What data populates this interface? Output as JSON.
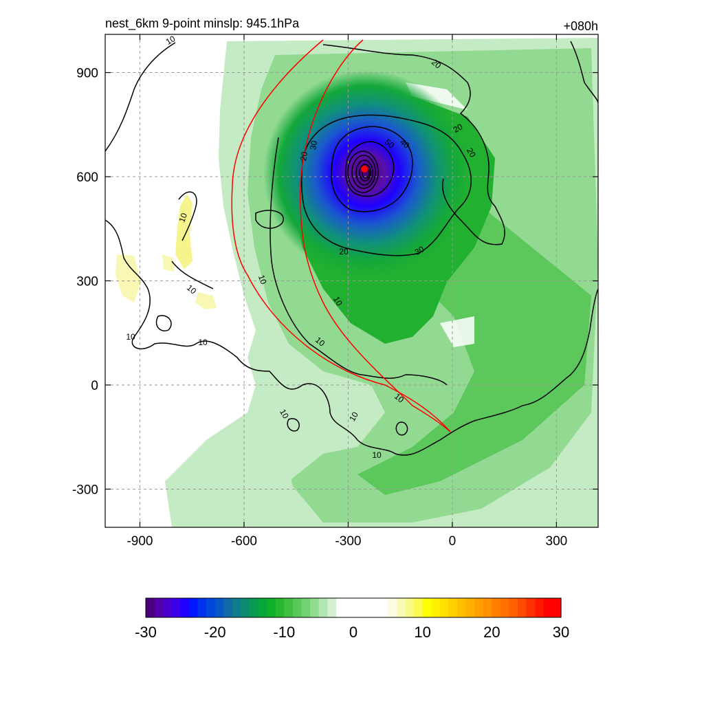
{
  "title": "nest_6km  9-point minslp: 945.1hPa",
  "forecast_hour": "+080h",
  "x_ticks": [
    "-900",
    "-600",
    "-300",
    "0",
    "300"
  ],
  "y_ticks": [
    "900",
    "600",
    "300",
    "0",
    "-300"
  ],
  "x_tick_values": [
    -900,
    -600,
    -300,
    0,
    300
  ],
  "y_tick_values": [
    900,
    600,
    300,
    0,
    -300
  ],
  "x_range": [
    -1000,
    420
  ],
  "y_range": [
    -410,
    1010
  ],
  "grid": true,
  "contour_labels": [
    "10",
    "10",
    "10",
    "10",
    "10",
    "10",
    "10",
    "10",
    "10",
    "10",
    "10",
    "10",
    "20",
    "20",
    "20",
    "20",
    "20",
    "30",
    "30",
    "40",
    "50"
  ],
  "storm_center": {
    "x": -253,
    "y": 622,
    "color": "#ff0000"
  },
  "colorbar": {
    "ticks": [
      "-30",
      "-20",
      "-10",
      "0",
      "10",
      "20",
      "30"
    ],
    "min": -30,
    "max": 30,
    "colors": [
      "#48007c",
      "#5400a8",
      "#4a00cc",
      "#3a00e6",
      "#2000ff",
      "#0018ff",
      "#0030f0",
      "#0048dc",
      "#0858c4",
      "#106aa8",
      "#0e7c8a",
      "#0c8c6e",
      "#0a9a52",
      "#08a838",
      "#12b02a",
      "#28b830",
      "#3ec040",
      "#58c858",
      "#74d074",
      "#92dc92",
      "#b2e6b2",
      "#d2f0d2",
      "#ffffff",
      "#ffffff",
      "#ffffff",
      "#ffffff",
      "#ffffff",
      "#ffffff",
      "#fcfce0",
      "#fafab8",
      "#fafa88",
      "#fafa50",
      "#ffff00",
      "#fff000",
      "#ffe000",
      "#ffd000",
      "#ffc000",
      "#ffb000",
      "#ffa000",
      "#ff9000",
      "#ff8000",
      "#ff7000",
      "#ff6000",
      "#ff4800",
      "#ff3000",
      "#ff1800",
      "#ff0000",
      "#ff0000"
    ]
  }
}
